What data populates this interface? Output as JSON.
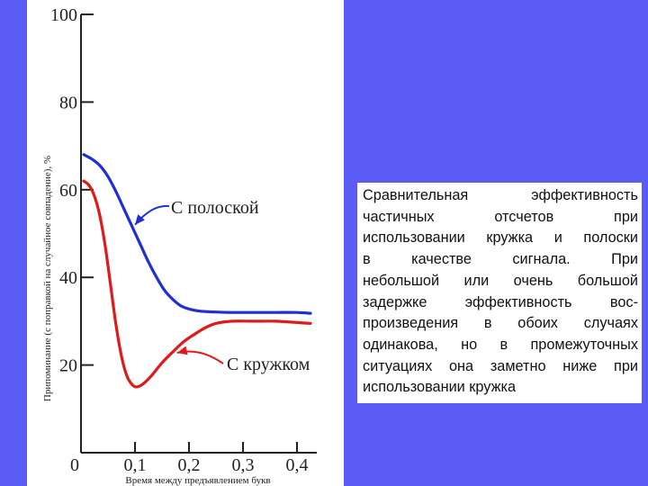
{
  "chart_data": {
    "type": "line",
    "xlabel": "Время между предъявлением букв",
    "ylabel": "Припоминание (с поправкой на случайное совпадение), %",
    "xlim": [
      0,
      0.43
    ],
    "ylim": [
      0,
      100
    ],
    "x_ticks": [
      {
        "value": 0,
        "label": "0"
      },
      {
        "value": 0.1,
        "label": "0,1"
      },
      {
        "value": 0.2,
        "label": "0,2"
      },
      {
        "value": 0.3,
        "label": "0,3"
      },
      {
        "value": 0.4,
        "label": "0,4"
      }
    ],
    "y_ticks": [
      {
        "value": 20,
        "label": "20"
      },
      {
        "value": 40,
        "label": "40"
      },
      {
        "value": 60,
        "label": "60"
      },
      {
        "value": 80,
        "label": "80"
      },
      {
        "value": 100,
        "label": "100"
      }
    ],
    "series": [
      {
        "name": "С полоской",
        "color": "#1f2fd8",
        "x": [
          0.005,
          0.02,
          0.035,
          0.05,
          0.065,
          0.08,
          0.095,
          0.11,
          0.125,
          0.14,
          0.155,
          0.17,
          0.185,
          0.2,
          0.22,
          0.25,
          0.28,
          0.32,
          0.36,
          0.4,
          0.425
        ],
        "y": [
          68,
          67,
          65.5,
          63,
          59.5,
          55.5,
          51.5,
          47.5,
          43.5,
          40,
          37,
          35,
          33.5,
          32.8,
          32.3,
          32.1,
          32,
          32,
          32,
          32,
          31.8
        ]
      },
      {
        "name": "С кружком",
        "color": "#e01a1a",
        "x": [
          0.005,
          0.015,
          0.025,
          0.035,
          0.045,
          0.055,
          0.065,
          0.075,
          0.085,
          0.095,
          0.103,
          0.115,
          0.13,
          0.15,
          0.17,
          0.19,
          0.21,
          0.23,
          0.25,
          0.28,
          0.32,
          0.36,
          0.4,
          0.425
        ],
        "y": [
          62,
          61,
          58.5,
          54,
          47,
          38,
          29,
          22,
          17.5,
          15.5,
          15,
          15.7,
          17.5,
          20.5,
          23,
          25.3,
          27,
          28.5,
          29.5,
          30,
          30,
          30,
          29.7,
          29.5
        ]
      }
    ],
    "annotations": [
      {
        "text": "С полоской",
        "series": 0
      },
      {
        "text": "С кружком",
        "series": 1
      }
    ]
  },
  "caption": {
    "lines": [
      "Сравнительная эффективность",
      "частичных отсчетов при",
      "использовании кружка и полоски",
      "в качестве сигнала. При",
      "небольшой или очень большой",
      "задержке эффективность вос-",
      "произведения в обоих случаях",
      "одинакова, но в промежуточных",
      "ситуациях она заметно ниже при",
      "использовании кружка"
    ]
  }
}
